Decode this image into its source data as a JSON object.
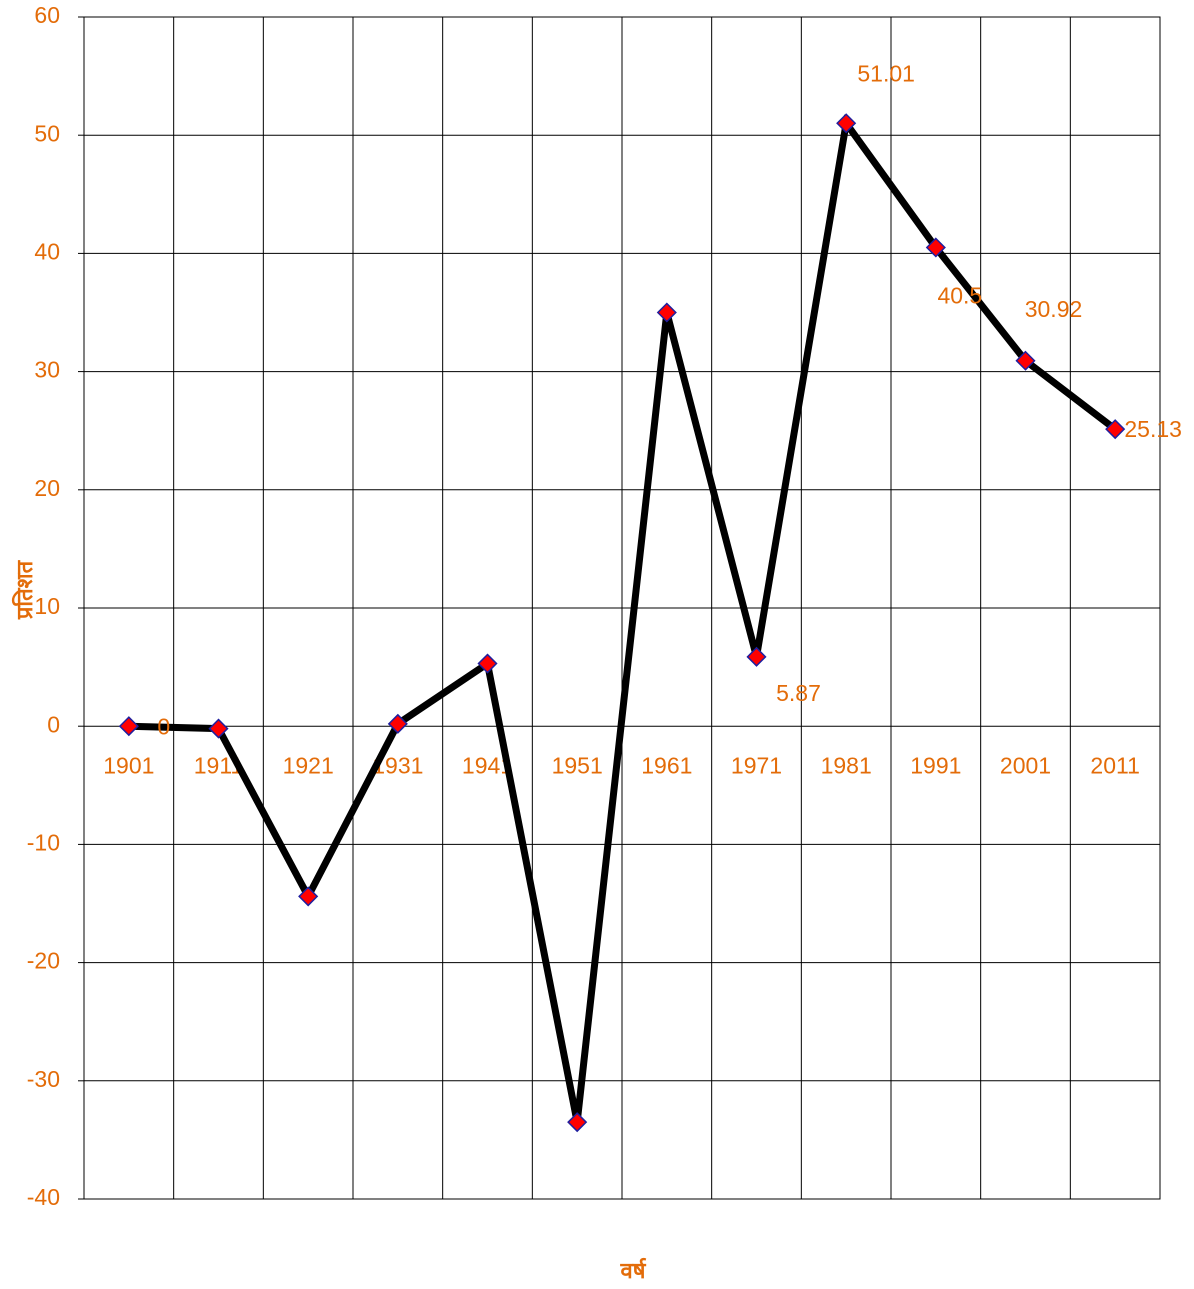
{
  "chart_data": {
    "type": "line",
    "categories": [
      "1901",
      "1911",
      "1921",
      "1931",
      "1941",
      "1951",
      "1961",
      "1971",
      "1981",
      "1991",
      "2001",
      "2011"
    ],
    "values": [
      0,
      -0.2,
      -14.4,
      0.2,
      5.3,
      -33.5,
      35,
      5.87,
      51.01,
      40.5,
      30.92,
      25.13
    ],
    "value_labels": [
      "0",
      null,
      null,
      null,
      null,
      null,
      null,
      "5.87",
      "51.01",
      "40.5",
      "30.92",
      "25.13"
    ],
    "color": "#000000",
    "marker_color": "#ff0000",
    "marker_edge_color": "#1f1f9f",
    "label_color": "#e36c09",
    "ylim": [
      -40,
      60
    ],
    "yticks": [
      -40,
      -30,
      -20,
      -10,
      0,
      10,
      20,
      30,
      40,
      50,
      60
    ],
    "grid": true,
    "xlabel": "वर्ष",
    "ylabel": "प्रतिशत"
  }
}
